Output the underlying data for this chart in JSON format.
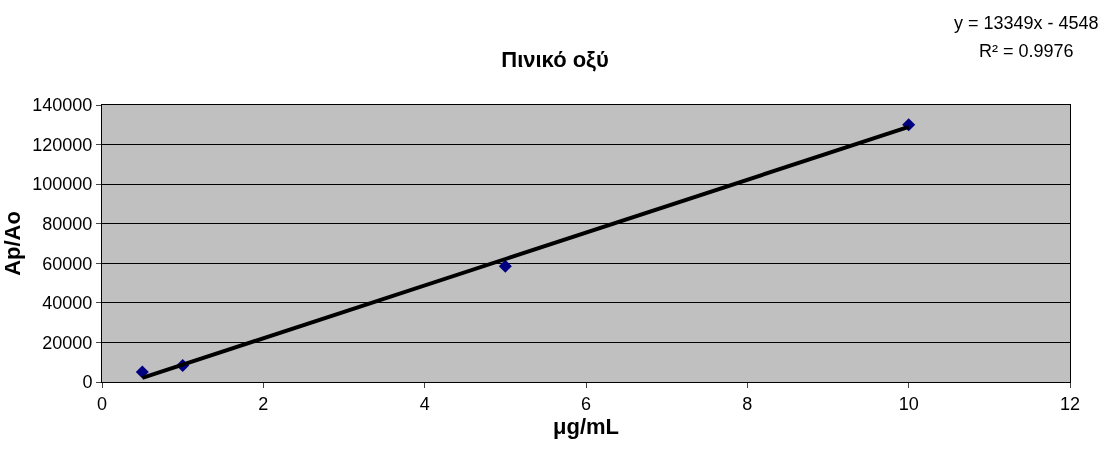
{
  "chart_data": {
    "type": "scatter",
    "title": "Πινικό οξύ",
    "xlabel": "μg/mL",
    "ylabel": "Ap/Ao",
    "x": [
      0.5,
      1,
      5,
      10
    ],
    "series": [
      {
        "color": "#000080",
        "marker": "diamond",
        "values": [
          5000,
          8300,
          58500,
          130000
        ]
      },
      {
        "type": "line",
        "color": "#000000",
        "x": [
          0.5,
          10
        ],
        "values": [
          2100,
          128900
        ]
      }
    ],
    "xlim": [
      0,
      12
    ],
    "xticks": [
      0,
      2,
      4,
      6,
      8,
      10,
      12
    ],
    "ylim": [
      0,
      140000
    ],
    "yticks": [
      0,
      20000,
      40000,
      60000,
      80000,
      100000,
      120000,
      140000
    ],
    "grid": "y",
    "legend": false,
    "annotations": [
      "y = 13349x - 4548",
      "R² = 0.9976"
    ]
  }
}
